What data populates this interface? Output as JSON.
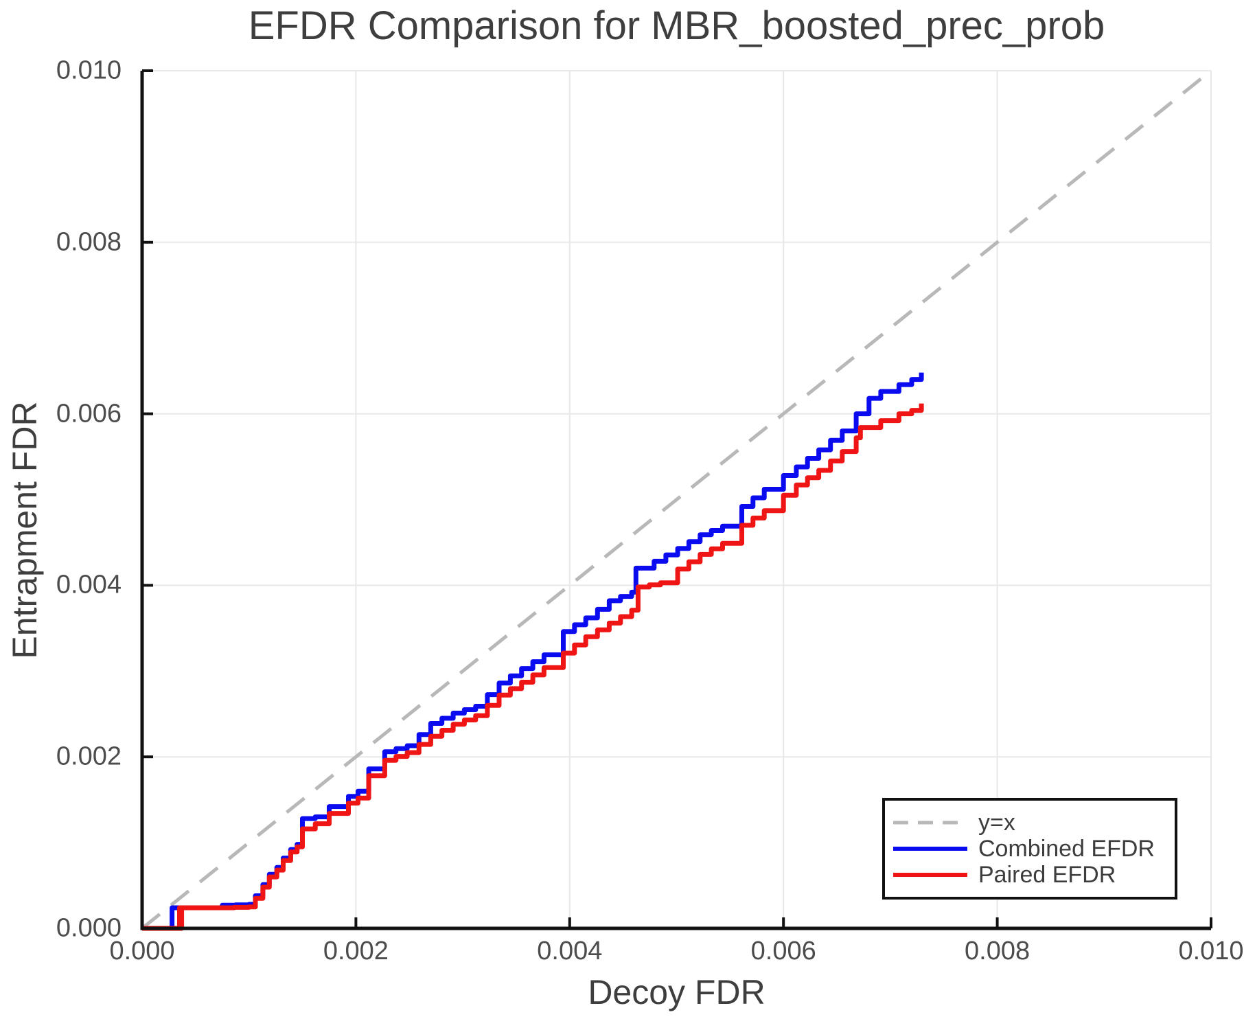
{
  "title": "EFDR Comparison for MBR_boosted_prec_prob",
  "chart_data": {
    "type": "line",
    "title": "EFDR Comparison for MBR_boosted_prec_prob",
    "xlabel": "Decoy FDR",
    "ylabel": "Entrapment FDR",
    "xlim": [
      0,
      0.01
    ],
    "ylim": [
      0,
      0.01
    ],
    "x_ticks": [
      "0.000",
      "0.002",
      "0.004",
      "0.006",
      "0.008",
      "0.010"
    ],
    "y_ticks": [
      "0.000",
      "0.002",
      "0.004",
      "0.006",
      "0.008",
      "0.010"
    ],
    "grid": true,
    "grid_color": "#e8e8e8",
    "spine_color": "#111111",
    "legend_position": "lower right",
    "series": [
      {
        "name": "y=x",
        "color": "#b8b8b8",
        "style": "dashed",
        "render": "line",
        "width": 5,
        "points": [
          [
            0,
            0
          ],
          [
            0.01,
            0.01
          ]
        ]
      },
      {
        "name": "Combined EFDR",
        "color": "#0b0bf0",
        "style": "solid",
        "render": "step",
        "width": 7,
        "points": [
          [
            0.0,
            0.0
          ],
          [
            0.00026,
            0.0
          ],
          [
            0.00028,
            0.00024
          ],
          [
            0.00072,
            0.00024
          ],
          [
            0.00075,
            0.00027
          ],
          [
            0.001,
            0.00028
          ],
          [
            0.00106,
            0.00038
          ],
          [
            0.00113,
            0.00051
          ],
          [
            0.00119,
            0.00063
          ],
          [
            0.00126,
            0.00071
          ],
          [
            0.00132,
            0.00082
          ],
          [
            0.00139,
            0.00092
          ],
          [
            0.00145,
            0.00098
          ],
          [
            0.0015,
            0.00128
          ],
          [
            0.00162,
            0.0013
          ],
          [
            0.00175,
            0.00142
          ],
          [
            0.00193,
            0.00154
          ],
          [
            0.00202,
            0.0016
          ],
          [
            0.00212,
            0.00186
          ],
          [
            0.00227,
            0.00206
          ],
          [
            0.00248,
            0.00213
          ],
          [
            0.0027,
            0.00239
          ],
          [
            0.00291,
            0.00251
          ],
          [
            0.00312,
            0.00259
          ],
          [
            0.00334,
            0.00286
          ],
          [
            0.00355,
            0.00303
          ],
          [
            0.00376,
            0.00319
          ],
          [
            0.00394,
            0.00346
          ],
          [
            0.00415,
            0.00362
          ],
          [
            0.00437,
            0.00382
          ],
          [
            0.00458,
            0.00392
          ],
          [
            0.00462,
            0.0042
          ],
          [
            0.00479,
            0.00428
          ],
          [
            0.00501,
            0.00443
          ],
          [
            0.00522,
            0.00459
          ],
          [
            0.00543,
            0.00469
          ],
          [
            0.00561,
            0.00492
          ],
          [
            0.00582,
            0.00512
          ],
          [
            0.006,
            0.00528
          ],
          [
            0.00612,
            0.00538
          ],
          [
            0.00633,
            0.00558
          ],
          [
            0.00655,
            0.0058
          ],
          [
            0.00668,
            0.006
          ],
          [
            0.0068,
            0.00618
          ],
          [
            0.00691,
            0.00626
          ],
          [
            0.00708,
            0.00634
          ],
          [
            0.0072,
            0.0064
          ],
          [
            0.00729,
            0.00648
          ]
        ]
      },
      {
        "name": "Paired EFDR",
        "color": "#f01515",
        "style": "solid",
        "render": "step",
        "width": 7,
        "points": [
          [
            0.0,
            0.0
          ],
          [
            0.00026,
            0.0
          ],
          [
            0.00035,
            0.00024
          ],
          [
            0.000365,
            0.0
          ],
          [
            0.00037,
            0.00024
          ],
          [
            0.00072,
            0.00024
          ],
          [
            0.001,
            0.00025
          ],
          [
            0.00106,
            0.00035
          ],
          [
            0.00113,
            0.00048
          ],
          [
            0.00119,
            0.0006
          ],
          [
            0.00126,
            0.00068
          ],
          [
            0.00132,
            0.00079
          ],
          [
            0.00139,
            0.00089
          ],
          [
            0.00145,
            0.00095
          ],
          [
            0.0015,
            0.00116
          ],
          [
            0.00162,
            0.00122
          ],
          [
            0.00175,
            0.00134
          ],
          [
            0.00193,
            0.00146
          ],
          [
            0.00202,
            0.00152
          ],
          [
            0.00212,
            0.00178
          ],
          [
            0.00227,
            0.00196
          ],
          [
            0.00248,
            0.00205
          ],
          [
            0.0027,
            0.00224
          ],
          [
            0.00291,
            0.00238
          ],
          [
            0.00312,
            0.00248
          ],
          [
            0.00334,
            0.00272
          ],
          [
            0.00355,
            0.00287
          ],
          [
            0.00376,
            0.00304
          ],
          [
            0.00394,
            0.00321
          ],
          [
            0.00415,
            0.0034
          ],
          [
            0.00437,
            0.00356
          ],
          [
            0.00458,
            0.00371
          ],
          [
            0.00464,
            0.00398
          ],
          [
            0.00485,
            0.00403
          ],
          [
            0.00501,
            0.00419
          ],
          [
            0.00522,
            0.00436
          ],
          [
            0.00543,
            0.00449
          ],
          [
            0.00561,
            0.0047
          ],
          [
            0.00582,
            0.00487
          ],
          [
            0.006,
            0.00505
          ],
          [
            0.00612,
            0.00517
          ],
          [
            0.00633,
            0.00534
          ],
          [
            0.00655,
            0.00556
          ],
          [
            0.00668,
            0.00572
          ],
          [
            0.00672,
            0.00584
          ],
          [
            0.00691,
            0.00592
          ],
          [
            0.00708,
            0.006
          ],
          [
            0.0072,
            0.00604
          ],
          [
            0.00729,
            0.00612
          ]
        ]
      }
    ]
  }
}
